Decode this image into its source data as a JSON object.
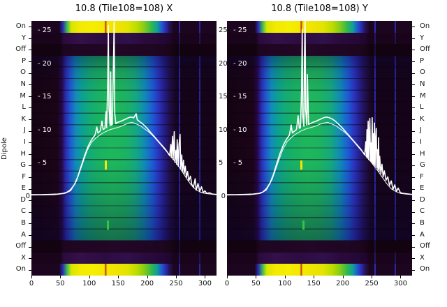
{
  "ylabel": "Dipole",
  "left_axis_labels": [
    "On",
    "Y",
    "Off",
    "P",
    "O",
    "N",
    "M",
    "L",
    "K",
    "J",
    "I",
    "H",
    "G",
    "F",
    "E",
    "D",
    "C",
    "B",
    "A",
    "Off",
    "X",
    "On"
  ],
  "right_axis_labels": [
    "On",
    "Y",
    "Off",
    "P",
    "O",
    "N",
    "M",
    "L",
    "K",
    "J",
    "I",
    "H",
    "G",
    "F",
    "E",
    "D",
    "C",
    "B",
    "A",
    "Off",
    "X",
    "On"
  ],
  "colors": {
    "trace": "#ffffff",
    "text": "#000000",
    "background": "#ffffff",
    "heatmap_low": "#160418",
    "heatmap_blue": "#2b2bb0",
    "heatmap_green": "#1eb75c",
    "heatmap_yellow": "#f2ea00"
  },
  "chart_data": [
    {
      "type": "heatmap",
      "title": "10.8 (Tile108=108) X",
      "xlabel": "",
      "ylabel": "Dipole",
      "x_range": [
        0,
        320
      ],
      "overlay_ylim": [
        0,
        27
      ],
      "x_ticks": [
        "0",
        "50",
        "100",
        "150",
        "200",
        "250",
        "300"
      ],
      "x_tick_values": [
        0,
        50,
        100,
        150,
        200,
        250,
        300
      ],
      "scale_values": [
        25,
        20,
        15,
        10,
        5
      ],
      "scale_labels": [
        "- 25",
        "- 20",
        "- 15",
        "- 10",
        "- 5"
      ],
      "right_scale_labels": [
        "25",
        "20",
        "15",
        "10",
        "5"
      ],
      "zero_label": "0",
      "legend": "off",
      "grid": "off",
      "lines": [
        {
          "name": "power-x",
          "points": [
            [
              0,
              0.3
            ],
            [
              15,
              0.3
            ],
            [
              30,
              0.35
            ],
            [
              45,
              0.4
            ],
            [
              55,
              0.5
            ],
            [
              62,
              0.7
            ],
            [
              68,
              1.1
            ],
            [
              74,
              1.8
            ],
            [
              80,
              3.0
            ],
            [
              86,
              4.6
            ],
            [
              92,
              6.2
            ],
            [
              98,
              7.6
            ],
            [
              104,
              8.6
            ],
            [
              110,
              9.3
            ],
            [
              113,
              10.5
            ],
            [
              115,
              9.6
            ],
            [
              119,
              9.9
            ],
            [
              122,
              11.4
            ],
            [
              124,
              10.1
            ],
            [
              127,
              10.3
            ],
            [
              129,
              12.8
            ],
            [
              130,
              10.4
            ],
            [
              132,
              17.5
            ],
            [
              133,
              25.8
            ],
            [
              134,
              13.5
            ],
            [
              136,
              10.7
            ],
            [
              137,
              18.8
            ],
            [
              138,
              10.8
            ],
            [
              140,
              10.9
            ],
            [
              142,
              21.0
            ],
            [
              143,
              26.3
            ],
            [
              144,
              12.5
            ],
            [
              146,
              11.0
            ],
            [
              149,
              11.2
            ],
            [
              153,
              11.3
            ],
            [
              158,
              11.5
            ],
            [
              163,
              11.7
            ],
            [
              168,
              11.9
            ],
            [
              172,
              12.0
            ],
            [
              177,
              11.9
            ],
            [
              181,
              12.5
            ],
            [
              183,
              11.6
            ],
            [
              187,
              11.3
            ],
            [
              192,
              11.0
            ],
            [
              197,
              10.6
            ],
            [
              202,
              10.1
            ],
            [
              207,
              9.6
            ],
            [
              212,
              9.1
            ],
            [
              217,
              8.6
            ],
            [
              222,
              8.1
            ],
            [
              227,
              7.6
            ],
            [
              232,
              7.1
            ],
            [
              236,
              6.6
            ],
            [
              239,
              6.2
            ],
            [
              241,
              7.9
            ],
            [
              242,
              5.9
            ],
            [
              244,
              9.1
            ],
            [
              245,
              5.6
            ],
            [
              247,
              9.8
            ],
            [
              248,
              5.2
            ],
            [
              250,
              7.0
            ],
            [
              251,
              4.9
            ],
            [
              252,
              8.6
            ],
            [
              254,
              4.6
            ],
            [
              255,
              7.7
            ],
            [
              257,
              9.4
            ],
            [
              258,
              4.2
            ],
            [
              260,
              6.3
            ],
            [
              261,
              3.8
            ],
            [
              263,
              5.5
            ],
            [
              264,
              3.4
            ],
            [
              266,
              4.6
            ],
            [
              268,
              2.9
            ],
            [
              270,
              3.8
            ],
            [
              272,
              2.4
            ],
            [
              275,
              3.1
            ],
            [
              277,
              1.9
            ],
            [
              280,
              1.4
            ],
            [
              283,
              2.7
            ],
            [
              285,
              1.0
            ],
            [
              288,
              2.0
            ],
            [
              291,
              0.8
            ],
            [
              294,
              1.5
            ],
            [
              297,
              0.6
            ],
            [
              300,
              0.9
            ],
            [
              303,
              0.5
            ],
            [
              308,
              0.6
            ],
            [
              313,
              0.4
            ],
            [
              320,
              0.35
            ]
          ]
        },
        {
          "name": "power-x-2",
          "points": [
            [
              0,
              0.25
            ],
            [
              40,
              0.3
            ],
            [
              58,
              0.5
            ],
            [
              68,
              0.9
            ],
            [
              78,
              2.4
            ],
            [
              88,
              4.9
            ],
            [
              96,
              6.9
            ],
            [
              104,
              8.2
            ],
            [
              112,
              8.9
            ],
            [
              120,
              9.4
            ],
            [
              128,
              9.8
            ],
            [
              136,
              10.1
            ],
            [
              144,
              10.3
            ],
            [
              152,
              10.5
            ],
            [
              160,
              10.8
            ],
            [
              168,
              11.1
            ],
            [
              174,
              11.2
            ],
            [
              180,
              11.0
            ],
            [
              188,
              10.7
            ],
            [
              196,
              10.2
            ],
            [
              204,
              9.7
            ],
            [
              212,
              9.0
            ],
            [
              220,
              8.2
            ],
            [
              228,
              7.4
            ],
            [
              236,
              6.6
            ],
            [
              244,
              5.8
            ],
            [
              252,
              4.9
            ],
            [
              260,
              3.9
            ],
            [
              268,
              2.8
            ],
            [
              276,
              1.8
            ],
            [
              284,
              1.1
            ],
            [
              292,
              0.7
            ],
            [
              300,
              0.5
            ],
            [
              310,
              0.4
            ],
            [
              320,
              0.35
            ]
          ]
        }
      ]
    },
    {
      "type": "heatmap",
      "title": "10.8 (Tile108=108) Y",
      "xlabel": "",
      "ylabel": "Dipole",
      "x_range": [
        0,
        320
      ],
      "overlay_ylim": [
        0,
        27
      ],
      "x_ticks": [
        "0",
        "50",
        "100",
        "150",
        "200",
        "250",
        "300"
      ],
      "x_tick_values": [
        0,
        50,
        100,
        150,
        200,
        250,
        300
      ],
      "scale_values": [
        25,
        20,
        15,
        10,
        5
      ],
      "scale_labels": [
        "- 25",
        "- 20",
        "- 15",
        "- 10",
        "- 5"
      ],
      "right_scale_labels": [],
      "zero_label": "0",
      "legend": "off",
      "grid": "off",
      "lines": [
        {
          "name": "power-y",
          "points": [
            [
              0,
              0.3
            ],
            [
              15,
              0.3
            ],
            [
              30,
              0.35
            ],
            [
              45,
              0.4
            ],
            [
              55,
              0.5
            ],
            [
              62,
              0.7
            ],
            [
              68,
              1.2
            ],
            [
              74,
              2.0
            ],
            [
              80,
              3.3
            ],
            [
              86,
              5.0
            ],
            [
              92,
              6.6
            ],
            [
              98,
              7.9
            ],
            [
              104,
              8.8
            ],
            [
              108,
              9.3
            ],
            [
              111,
              10.8
            ],
            [
              113,
              9.6
            ],
            [
              117,
              9.9
            ],
            [
              120,
              10.1
            ],
            [
              123,
              12.2
            ],
            [
              125,
              10.3
            ],
            [
              127,
              10.4
            ],
            [
              129,
              16.2
            ],
            [
              130,
              25.2
            ],
            [
              131,
              12.3
            ],
            [
              133,
              10.6
            ],
            [
              134,
              21.5
            ],
            [
              135,
              26.6
            ],
            [
              136,
              13.2
            ],
            [
              138,
              10.8
            ],
            [
              139,
              18.4
            ],
            [
              141,
              10.9
            ],
            [
              144,
              11.0
            ],
            [
              148,
              11.2
            ],
            [
              152,
              11.3
            ],
            [
              157,
              11.5
            ],
            [
              162,
              11.7
            ],
            [
              167,
              11.9
            ],
            [
              172,
              12.0
            ],
            [
              177,
              11.9
            ],
            [
              182,
              11.7
            ],
            [
              187,
              11.4
            ],
            [
              192,
              11.0
            ],
            [
              197,
              10.6
            ],
            [
              202,
              10.1
            ],
            [
              207,
              9.6
            ],
            [
              212,
              9.1
            ],
            [
              217,
              8.6
            ],
            [
              222,
              8.1
            ],
            [
              227,
              7.6
            ],
            [
              231,
              7.2
            ],
            [
              235,
              6.7
            ],
            [
              238,
              6.3
            ],
            [
              240,
              8.3
            ],
            [
              241,
              6.0
            ],
            [
              242,
              10.1
            ],
            [
              243,
              5.8
            ],
            [
              244,
              11.4
            ],
            [
              245,
              5.6
            ],
            [
              246,
              9.0
            ],
            [
              247,
              11.8
            ],
            [
              248,
              5.4
            ],
            [
              249,
              8.1
            ],
            [
              250,
              5.2
            ],
            [
              251,
              11.9
            ],
            [
              252,
              5.0
            ],
            [
              253,
              9.5
            ],
            [
              254,
              4.8
            ],
            [
              255,
              11.1
            ],
            [
              256,
              4.6
            ],
            [
              257,
              8.5
            ],
            [
              258,
              10.3
            ],
            [
              259,
              4.4
            ],
            [
              260,
              7.1
            ],
            [
              261,
              4.1
            ],
            [
              262,
              8.9
            ],
            [
              263,
              3.8
            ],
            [
              264,
              6.1
            ],
            [
              266,
              3.5
            ],
            [
              268,
              4.9
            ],
            [
              270,
              3.0
            ],
            [
              272,
              3.9
            ],
            [
              275,
              2.5
            ],
            [
              278,
              3.0
            ],
            [
              281,
              1.7
            ],
            [
              284,
              2.4
            ],
            [
              287,
              1.1
            ],
            [
              290,
              1.8
            ],
            [
              293,
              0.8
            ],
            [
              296,
              1.3
            ],
            [
              300,
              0.6
            ],
            [
              305,
              0.5
            ],
            [
              310,
              0.45
            ],
            [
              320,
              0.35
            ]
          ]
        },
        {
          "name": "power-y-2",
          "points": [
            [
              0,
              0.25
            ],
            [
              40,
              0.3
            ],
            [
              58,
              0.5
            ],
            [
              68,
              1.0
            ],
            [
              78,
              2.6
            ],
            [
              88,
              5.1
            ],
            [
              96,
              7.0
            ],
            [
              104,
              8.3
            ],
            [
              112,
              9.0
            ],
            [
              120,
              9.5
            ],
            [
              128,
              9.9
            ],
            [
              136,
              10.2
            ],
            [
              144,
              10.4
            ],
            [
              152,
              10.6
            ],
            [
              160,
              10.9
            ],
            [
              168,
              11.1
            ],
            [
              174,
              11.2
            ],
            [
              180,
              11.0
            ],
            [
              188,
              10.7
            ],
            [
              196,
              10.2
            ],
            [
              204,
              9.7
            ],
            [
              212,
              9.0
            ],
            [
              220,
              8.2
            ],
            [
              228,
              7.4
            ],
            [
              236,
              6.6
            ],
            [
              244,
              5.8
            ],
            [
              252,
              4.9
            ],
            [
              260,
              4.0
            ],
            [
              268,
              3.0
            ],
            [
              276,
              2.0
            ],
            [
              284,
              1.2
            ],
            [
              292,
              0.8
            ],
            [
              300,
              0.5
            ],
            [
              310,
              0.4
            ],
            [
              320,
              0.35
            ]
          ]
        }
      ]
    }
  ]
}
